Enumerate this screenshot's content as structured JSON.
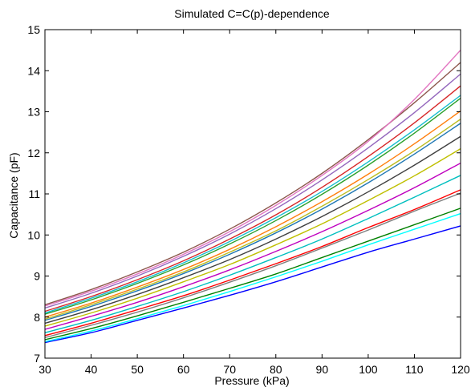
{
  "chart_data": {
    "type": "line",
    "title": "Simulated C=C(p)-dependence",
    "xlabel": "Pressure (kPa)",
    "ylabel": "Capacitance (pF)",
    "xlim": [
      30,
      120
    ],
    "ylim": [
      7,
      15
    ],
    "xticks": [
      30,
      40,
      50,
      60,
      70,
      80,
      90,
      100,
      110,
      120
    ],
    "yticks": [
      7,
      8,
      9,
      10,
      11,
      12,
      13,
      14,
      15
    ],
    "grid": false,
    "legend": "none",
    "x": [
      30,
      40,
      50,
      60,
      70,
      80,
      90,
      100,
      110,
      120
    ],
    "series": [
      {
        "values": [
          7.38,
          7.62,
          7.92,
          8.22,
          8.53,
          8.86,
          9.22,
          9.58,
          9.9,
          10.22
        ]
      },
      {
        "values": [
          7.45,
          7.72,
          8.03,
          8.36,
          8.7,
          9.05,
          9.45,
          9.85,
          10.25,
          10.65
        ]
      },
      {
        "values": [
          7.55,
          7.85,
          8.18,
          8.52,
          8.9,
          9.3,
          9.72,
          10.18,
          10.62,
          11.1
        ]
      },
      {
        "values": [
          7.62,
          7.92,
          8.26,
          8.62,
          9.02,
          9.45,
          9.9,
          10.4,
          10.92,
          11.45
        ]
      },
      {
        "values": [
          7.7,
          8.02,
          8.36,
          8.74,
          9.15,
          9.6,
          10.08,
          10.6,
          11.15,
          11.75
        ]
      },
      {
        "values": [
          7.78,
          8.1,
          8.46,
          8.86,
          9.28,
          9.76,
          10.27,
          10.84,
          11.44,
          12.1
        ]
      },
      {
        "values": [
          7.85,
          8.18,
          8.55,
          8.96,
          9.4,
          9.9,
          10.45,
          11.05,
          11.7,
          12.4
        ]
      },
      {
        "values": [
          7.92,
          8.26,
          8.64,
          9.06,
          9.53,
          10.05,
          10.63,
          11.27,
          11.97,
          12.72
        ]
      },
      {
        "values": [
          8.0,
          8.34,
          8.73,
          9.16,
          9.65,
          10.2,
          10.81,
          11.48,
          12.22,
          13.02
        ]
      },
      {
        "values": [
          8.07,
          8.42,
          8.82,
          9.27,
          9.78,
          10.35,
          10.99,
          11.7,
          12.48,
          13.33
        ]
      },
      {
        "values": [
          8.14,
          8.5,
          8.91,
          9.37,
          9.9,
          10.49,
          11.16,
          11.91,
          12.73,
          13.63
        ]
      },
      {
        "values": [
          8.22,
          8.58,
          9.0,
          9.48,
          10.02,
          10.64,
          11.34,
          12.12,
          12.98,
          13.92
        ]
      },
      {
        "values": [
          8.3,
          8.67,
          9.1,
          9.58,
          10.14,
          10.78,
          11.5,
          12.32,
          13.22,
          14.2
        ]
      },
      {
        "values": [
          8.27,
          8.63,
          9.05,
          9.53,
          10.08,
          10.72,
          11.45,
          12.28,
          13.3,
          14.5
        ]
      },
      {
        "values": [
          7.5,
          7.8,
          8.12,
          8.47,
          8.85,
          9.25,
          9.68,
          10.12,
          10.58,
          11.02
        ]
      },
      {
        "values": [
          8.1,
          8.46,
          8.86,
          9.32,
          9.84,
          10.42,
          11.06,
          11.78,
          12.56,
          13.4
        ]
      },
      {
        "values": [
          7.95,
          8.3,
          8.68,
          9.1,
          9.58,
          10.1,
          10.7,
          11.35,
          12.05,
          12.82
        ]
      },
      {
        "values": [
          7.4,
          7.66,
          7.96,
          8.28,
          8.62,
          8.98,
          9.36,
          9.76,
          10.14,
          10.52
        ]
      }
    ],
    "colors": [
      "#0000ff",
      "#008000",
      "#ff0000",
      "#00bfbf",
      "#bf00bf",
      "#bfbf00",
      "#404040",
      "#1f77b4",
      "#ff7f0e",
      "#2ca02c",
      "#d62728",
      "#9467bd",
      "#8c564b",
      "#e377c2",
      "#7f7f7f",
      "#17becf",
      "#bcbd22",
      "#00ffff"
    ]
  }
}
